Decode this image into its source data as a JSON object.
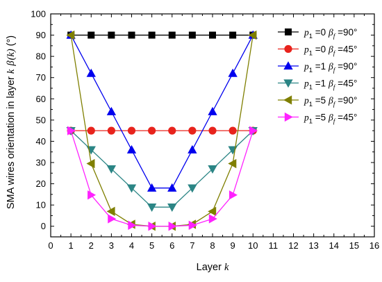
{
  "chart_data": {
    "type": "line",
    "xlabel": {
      "text": "Layer ",
      "var": "k"
    },
    "ylabel": {
      "text": "SMA wires orientation in layer ",
      "var_k": "k",
      "beta": "β",
      "paren_k": "(k)",
      "unit": "(°)"
    },
    "xlim": [
      0,
      16
    ],
    "ylim": [
      -5,
      100
    ],
    "xticks": [
      "0",
      "1",
      "2",
      "3",
      "4",
      "5",
      "6",
      "7",
      "8",
      "9",
      "10",
      "11",
      "12",
      "13",
      "14",
      "15",
      "16"
    ],
    "yticks": [
      "0",
      "10",
      "20",
      "30",
      "40",
      "50",
      "60",
      "70",
      "80",
      "90",
      "100"
    ],
    "grid": false,
    "legend_position": "top-right",
    "x": [
      1,
      2,
      3,
      4,
      5,
      6,
      7,
      8,
      9,
      10
    ],
    "series": [
      {
        "legend": {
          "p": "p",
          "p_sub": "1",
          "p_val": " =0 ",
          "b": "β",
          "b_sub": "f",
          "b_val": " =90°"
        },
        "color": "#000000",
        "marker": "square",
        "values": [
          90,
          90,
          90,
          90,
          90,
          90,
          90,
          90,
          90,
          90
        ]
      },
      {
        "legend": {
          "p": "p",
          "p_sub": "1",
          "p_val": " =0 ",
          "b": "β",
          "b_sub": "f",
          "b_val": " =45°"
        },
        "color": "#e8231c",
        "marker": "circle",
        "values": [
          45,
          45,
          45,
          45,
          45,
          45,
          45,
          45,
          45,
          45
        ]
      },
      {
        "legend": {
          "p": "p",
          "p_sub": "1",
          "p_val": " =1 ",
          "b": "β",
          "b_sub": "f",
          "b_val": " =90°"
        },
        "color": "#0000ee",
        "marker": "triangle-up",
        "values": [
          90,
          72,
          54,
          36,
          18,
          18,
          36,
          54,
          72,
          90
        ]
      },
      {
        "legend": {
          "p": "p",
          "p_sub": "1",
          "p_val": " =1 ",
          "b": "β",
          "b_sub": "f",
          "b_val": " =45°"
        },
        "color": "#2b8585",
        "marker": "triangle-down",
        "values": [
          45,
          36,
          27,
          18,
          9,
          9,
          18,
          27,
          36,
          45
        ]
      },
      {
        "legend": {
          "p": "p",
          "p_sub": "1",
          "p_val": " =5 ",
          "b": "β",
          "b_sub": "f",
          "b_val": " =90°"
        },
        "color": "#7f7f00",
        "marker": "triangle-left",
        "values": [
          90,
          29.5,
          7,
          0.9,
          0,
          0,
          0.9,
          7,
          29.5,
          90
        ]
      },
      {
        "legend": {
          "p": "p",
          "p_sub": "1",
          "p_val": " =5 ",
          "b": "β",
          "b_sub": "f",
          "b_val": " =45°"
        },
        "color": "#ff22ff",
        "marker": "triangle-right",
        "values": [
          45,
          14.7,
          3.5,
          0.45,
          0,
          0,
          0.45,
          3.5,
          14.7,
          45
        ]
      }
    ]
  }
}
